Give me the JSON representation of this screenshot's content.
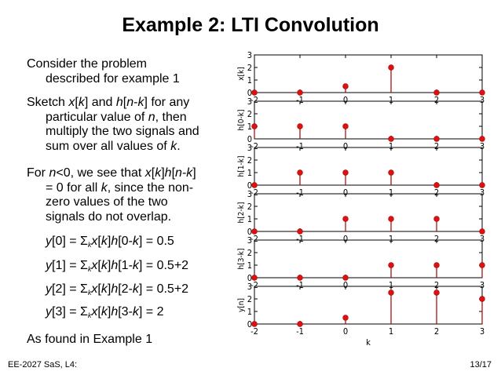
{
  "slide": {
    "title": "Example 2: LTI Convolution",
    "paragraphs": [
      {
        "lines": [
          [
            {
              "t": "Consider the problem"
            }
          ],
          [
            {
              "t": "described for example 1"
            }
          ]
        ]
      },
      {
        "lines": [
          [
            {
              "t": "Sketch "
            },
            {
              "t": "x",
              "i": true
            },
            {
              "t": "["
            },
            {
              "t": "k",
              "i": true
            },
            {
              "t": "] and "
            },
            {
              "t": "h",
              "i": true
            },
            {
              "t": "["
            },
            {
              "t": "n",
              "i": true
            },
            {
              "t": "-"
            },
            {
              "t": "k",
              "i": true
            },
            {
              "t": "] for any"
            }
          ],
          [
            {
              "t": "particular value of "
            },
            {
              "t": "n",
              "i": true
            },
            {
              "t": ", then"
            }
          ],
          [
            {
              "t": "multiply the two signals and"
            }
          ],
          [
            {
              "t": "sum over all values of "
            },
            {
              "t": "k",
              "i": true
            },
            {
              "t": "."
            }
          ]
        ]
      },
      {
        "lines": [
          [
            {
              "t": "For "
            },
            {
              "t": "n",
              "i": true
            },
            {
              "t": "<0, we see that "
            },
            {
              "t": "x",
              "i": true
            },
            {
              "t": "["
            },
            {
              "t": "k",
              "i": true
            },
            {
              "t": "]"
            },
            {
              "t": "h",
              "i": true
            },
            {
              "t": "["
            },
            {
              "t": "n",
              "i": true
            },
            {
              "t": "-"
            },
            {
              "t": "k",
              "i": true
            },
            {
              "t": "]"
            }
          ],
          [
            {
              "t": "= 0 for all "
            },
            {
              "t": "k",
              "i": true
            },
            {
              "t": ", since the non-"
            }
          ],
          [
            {
              "t": "zero values of the two"
            }
          ],
          [
            {
              "t": "signals do not overlap."
            }
          ]
        ]
      }
    ],
    "equations": [
      [
        {
          "t": "y",
          "i": true
        },
        {
          "t": "[0] = Σ"
        },
        {
          "t": "k",
          "i": true,
          "sub": true
        },
        {
          "t": "x",
          "i": true
        },
        {
          "t": "["
        },
        {
          "t": "k",
          "i": true
        },
        {
          "t": "]"
        },
        {
          "t": "h",
          "i": true
        },
        {
          "t": "[0-"
        },
        {
          "t": "k",
          "i": true
        },
        {
          "t": "] = 0.5"
        }
      ],
      [
        {
          "t": "y",
          "i": true
        },
        {
          "t": "[1] = Σ"
        },
        {
          "t": "k",
          "i": true,
          "sub": true
        },
        {
          "t": "x",
          "i": true
        },
        {
          "t": "["
        },
        {
          "t": "k",
          "i": true
        },
        {
          "t": "]"
        },
        {
          "t": "h",
          "i": true
        },
        {
          "t": "[1-"
        },
        {
          "t": "k",
          "i": true
        },
        {
          "t": "] = 0.5+2"
        }
      ],
      [
        {
          "t": "y",
          "i": true
        },
        {
          "t": "[2] = Σ"
        },
        {
          "t": "k",
          "i": true,
          "sub": true
        },
        {
          "t": "x",
          "i": true
        },
        {
          "t": "["
        },
        {
          "t": "k",
          "i": true
        },
        {
          "t": "]"
        },
        {
          "t": "h",
          "i": true
        },
        {
          "t": "[2-"
        },
        {
          "t": "k",
          "i": true
        },
        {
          "t": "] = 0.5+2"
        }
      ],
      [
        {
          "t": "y",
          "i": true
        },
        {
          "t": "[3] = Σ"
        },
        {
          "t": "k",
          "i": true,
          "sub": true
        },
        {
          "t": "x",
          "i": true
        },
        {
          "t": "["
        },
        {
          "t": "k",
          "i": true
        },
        {
          "t": "]"
        },
        {
          "t": "h",
          "i": true
        },
        {
          "t": "[3-"
        },
        {
          "t": "k",
          "i": true
        },
        {
          "t": "] = 2"
        }
      ]
    ],
    "conclusion": "As found in Example 1",
    "footer": {
      "left": "EE-2027 SaS, L4:",
      "right": "13/17"
    }
  },
  "chart_data": {
    "type": "stem",
    "stem_color": "#a30000",
    "marker_color": "#e01010",
    "axis_color": "#000000",
    "xlim": [
      -2,
      3
    ],
    "ylim": [
      0,
      3
    ],
    "x_ticks": [
      "-2",
      "-1",
      "0",
      "1",
      "2",
      "3"
    ],
    "y_ticks": [
      "0",
      "1",
      "2",
      "3"
    ],
    "xlabel": "k",
    "panels": [
      {
        "ylabel": "x[k]",
        "x": [
          -2,
          -1,
          0,
          1,
          2,
          3
        ],
        "y": [
          0,
          0,
          0.5,
          2,
          0,
          0
        ]
      },
      {
        "ylabel": "h[0-k]",
        "x": [
          -2,
          -1,
          0,
          1,
          2,
          3
        ],
        "y": [
          1,
          1,
          1,
          0,
          0,
          0
        ]
      },
      {
        "ylabel": "h[1-k]",
        "x": [
          -2,
          -1,
          0,
          1,
          2,
          3
        ],
        "y": [
          0,
          1,
          1,
          1,
          0,
          0
        ]
      },
      {
        "ylabel": "h[2-k]",
        "x": [
          -2,
          -1,
          0,
          1,
          2,
          3
        ],
        "y": [
          0,
          0,
          1,
          1,
          1,
          0
        ]
      },
      {
        "ylabel": "h[3-k]",
        "x": [
          -2,
          -1,
          0,
          1,
          2,
          3
        ],
        "y": [
          0,
          0,
          0,
          1,
          1,
          1
        ]
      },
      {
        "ylabel": "y[n]",
        "x": [
          -2,
          -1,
          0,
          1,
          2,
          3
        ],
        "y": [
          0,
          0,
          0.5,
          2.5,
          2.5,
          2
        ]
      }
    ]
  }
}
